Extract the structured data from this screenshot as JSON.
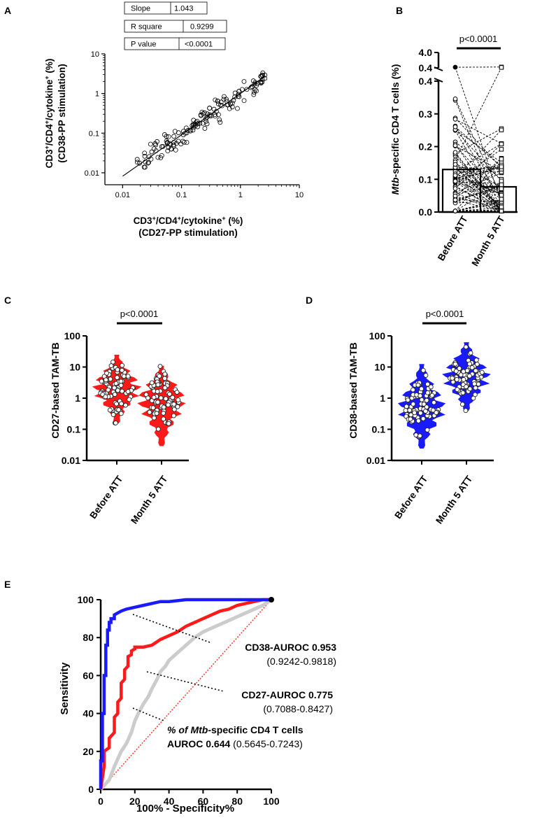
{
  "panel_labels": {
    "A": "A",
    "B": "B",
    "C": "C",
    "D": "D",
    "E": "E"
  },
  "colors": {
    "blue": "#1a1aff",
    "red": "#ff1a1a",
    "gray": "#cccccc",
    "black": "#000000",
    "white": "#ffffff"
  },
  "chart_data": [
    {
      "panel": "A",
      "type": "scatter",
      "xlabel_prefix": "CD3",
      "xlabel_sup1": "+",
      "xlabel_mid": "/CD4",
      "xlabel_sup2": "+",
      "xlabel_mid2": "/cytokine",
      "xlabel_sup3": "+",
      "xlabel_suffix": " (%)",
      "xlabel_line2": "(CD27-PP stimulation)",
      "ylabel_prefix": "CD3",
      "ylabel_sup1": "+",
      "ylabel_mid": "/CD4",
      "ylabel_sup2": "+",
      "ylabel_mid2": "/cytokine",
      "ylabel_sup3": "+",
      "ylabel_suffix": " (%)",
      "ylabel_line2": "(CD38-PP stimulation)",
      "xscale": "log",
      "yscale": "log",
      "xlim": [
        0.005,
        10
      ],
      "ylim": [
        0.005,
        10
      ],
      "xticks": [
        0.01,
        0.1,
        1,
        10
      ],
      "xtick_labels": [
        "0.01",
        "0.1",
        "1",
        "10"
      ],
      "yticks": [
        0.01,
        0.1,
        1,
        10
      ],
      "ytick_labels": [
        "0.01",
        "0.1",
        "1",
        "10"
      ],
      "stats": [
        {
          "label": "Slope",
          "value": "1.043"
        },
        {
          "label": "R square",
          "value": "0.9299"
        },
        {
          "label": "P value",
          "value": "<0.0001"
        }
      ],
      "regression": {
        "slope": 1.043,
        "x_range": [
          0.01,
          2.6
        ]
      },
      "n_points": 150,
      "point_range": [
        0.01,
        2.6
      ]
    },
    {
      "panel": "B",
      "type": "bar",
      "ylabel_italic": "Mtb",
      "ylabel_rest": "-specific CD4 T cells (%)",
      "categories": [
        "Before ATT",
        "Month 5 ATT"
      ],
      "values": [
        0.13,
        0.077
      ],
      "ylim": [
        0,
        4.0
      ],
      "yticks_lower": [
        0.0,
        0.1,
        0.2,
        0.3,
        0.4
      ],
      "ytick_labels_lower": [
        "0.0",
        "0.1",
        "0.2",
        "0.3",
        "0.4"
      ],
      "yticks_upper": [
        0.4,
        4.0
      ],
      "ytick_labels_upper": [
        "0.4",
        "4.0"
      ],
      "axis_break": true,
      "significance": "p<0.0001",
      "paired": true,
      "n_points": 70
    },
    {
      "panel": "C",
      "type": "violin",
      "ylabel": "CD27-based TAM-TB",
      "categories": [
        "Before ATT",
        "Month 5 ATT"
      ],
      "yscale": "log",
      "ylim": [
        0.01,
        100
      ],
      "yticks": [
        0.01,
        0.1,
        1,
        10,
        100
      ],
      "ytick_labels": [
        "0.01",
        "0.1",
        "1",
        "10",
        "100"
      ],
      "series_ranges": [
        [
          0.16,
          24
        ],
        [
          0.03,
          10.5
        ]
      ],
      "medians": [
        2.2,
        0.9
      ],
      "fill_color": "#ff1a1a",
      "significance": "p<0.0001",
      "n_points": 80
    },
    {
      "panel": "D",
      "type": "violin",
      "ylabel": "CD38-based TAM-TB",
      "categories": [
        "Before ATT",
        "Month 5 ATT"
      ],
      "yscale": "log",
      "ylim": [
        0.01,
        100
      ],
      "yticks": [
        0.01,
        0.1,
        1,
        10,
        100
      ],
      "ytick_labels": [
        "0.01",
        "0.1",
        "1",
        "10",
        "100"
      ],
      "series_ranges": [
        [
          0.025,
          12
        ],
        [
          0.4,
          60
        ]
      ],
      "medians": [
        0.5,
        5
      ],
      "fill_color": "#1a1aff",
      "significance": "p<0.0001",
      "n_points": 80
    },
    {
      "panel": "E",
      "type": "line",
      "xlabel": "100% - Specificity%",
      "ylabel": "Sensitivity",
      "xlim": [
        0,
        100
      ],
      "ylim": [
        0,
        100
      ],
      "xticks": [
        0,
        20,
        40,
        60,
        80,
        100
      ],
      "xtick_labels": [
        "0",
        "20",
        "40",
        "60",
        "80",
        "100"
      ],
      "yticks": [
        0,
        20,
        40,
        60,
        80,
        100
      ],
      "ytick_labels": [
        "0",
        "20",
        "40",
        "60",
        "80",
        "100"
      ],
      "series": [
        {
          "name": "CD38",
          "color": "#1a1aff",
          "x": [
            0,
            0,
            1,
            1,
            2,
            2,
            3,
            3,
            4,
            4,
            5,
            5,
            6,
            6,
            8,
            8,
            10,
            12,
            15,
            20,
            25,
            30,
            35,
            40,
            50,
            60,
            70,
            80,
            90,
            100
          ],
          "y": [
            0,
            15,
            15,
            40,
            40,
            60,
            60,
            76,
            76,
            84,
            84,
            88,
            88,
            90,
            90,
            92,
            93,
            94,
            95,
            96,
            97,
            98,
            99,
            99,
            100,
            100,
            100,
            100,
            100,
            100
          ],
          "label_name": "CD38-AUROC",
          "label_value": "0.953",
          "label_ci": "(0.9242-0.9818)"
        },
        {
          "name": "CD27",
          "color": "#ff1a1a",
          "x": [
            0,
            2,
            2,
            5,
            5,
            8,
            8,
            10,
            10,
            12,
            12,
            14,
            14,
            16,
            16,
            18,
            18,
            20,
            20,
            25,
            30,
            35,
            40,
            45,
            50,
            55,
            60,
            65,
            70,
            75,
            80,
            85,
            90,
            95,
            100
          ],
          "y": [
            0,
            12,
            20,
            22,
            27,
            30,
            38,
            40,
            46,
            48,
            56,
            58,
            63,
            65,
            70,
            71,
            73,
            74,
            75,
            75,
            76,
            79,
            81,
            83,
            86,
            88,
            90,
            92,
            94,
            95,
            97,
            98,
            99,
            100,
            100
          ],
          "label_name": "CD27-AUROC",
          "label_value": "0.775",
          "label_ci": "(0.7088-0.8427)"
        },
        {
          "name": "Mtb",
          "color": "#cccccc",
          "x": [
            0,
            5,
            8,
            10,
            12,
            15,
            18,
            20,
            22,
            25,
            28,
            30,
            33,
            35,
            38,
            40,
            45,
            50,
            55,
            60,
            65,
            70,
            75,
            80,
            85,
            90,
            95,
            100
          ],
          "y": [
            0,
            5,
            12,
            16,
            20,
            24,
            30,
            36,
            40,
            45,
            49,
            53,
            58,
            62,
            65,
            68,
            72,
            76,
            80,
            83,
            85,
            87,
            89,
            91,
            93,
            95,
            97,
            100
          ],
          "label_line1_italic_prefix": "% of ",
          "label_line1_italic": "Mtb",
          "label_line1_rest": "-specific CD4 T cells",
          "label_name": "AUROC",
          "label_value": "0.644",
          "label_ci": "(0.5645-0.7243)"
        }
      ],
      "reference_line": {
        "x": [
          0,
          100
        ],
        "y": [
          0,
          100
        ],
        "color": "#ff3333"
      }
    }
  ]
}
